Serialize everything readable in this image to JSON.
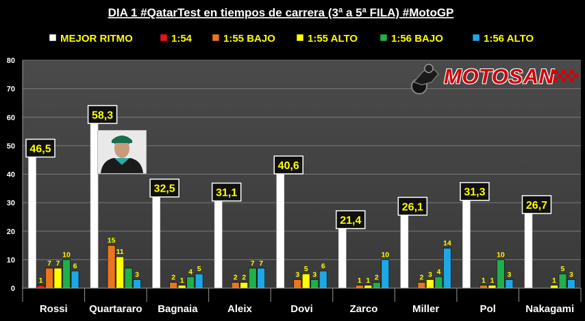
{
  "chart_data": {
    "type": "bar",
    "title": "DIA 1 #QatarTest en tiempos de carrera (3ª a 5ª FILA) #MotoGP",
    "xlabel": "",
    "ylabel": "",
    "ylim": [
      0,
      80
    ],
    "yticks": [
      0,
      10,
      20,
      30,
      40,
      50,
      60,
      70,
      80
    ],
    "legend_position": "top",
    "categories": [
      "Rossi",
      "Quartararo",
      "Bagnaia",
      "Aleix",
      "Dovi",
      "Zarco",
      "Miller",
      "Pol",
      "Nakagami"
    ],
    "series": [
      {
        "name": "MEJOR RITMO",
        "color": "#ffffff",
        "values": [
          46.5,
          58.3,
          32.5,
          31.1,
          40.6,
          21.4,
          26.1,
          31.3,
          26.7
        ],
        "labels": [
          "46,5",
          "58,3",
          "32,5",
          "31,1",
          "40,6",
          "21,4",
          "26,1",
          "31,3",
          "26,7"
        ]
      },
      {
        "name": "1:54",
        "color": "#e8131b",
        "values": [
          1,
          0,
          0,
          0,
          0,
          0,
          0,
          0,
          0
        ],
        "labels": [
          "1",
          "",
          "",
          "",
          "",
          "",
          "",
          "",
          ""
        ]
      },
      {
        "name": "1:55 BAJO",
        "color": "#e8761e",
        "values": [
          7,
          15,
          2,
          2,
          3,
          1,
          2,
          1,
          0
        ],
        "labels": [
          "7",
          "15",
          "2",
          "2",
          "3",
          "1",
          "2",
          "1",
          ""
        ]
      },
      {
        "name": "1:55 ALTO",
        "color": "#ffff00",
        "values": [
          7,
          11,
          1,
          2,
          5,
          1,
          3,
          1,
          1
        ],
        "labels": [
          "7",
          "11",
          "1",
          "2",
          "5",
          "1",
          "3",
          "1",
          "1"
        ]
      },
      {
        "name": "1:56 BAJO",
        "color": "#1fb04a",
        "values": [
          10,
          7,
          4,
          7,
          3,
          2,
          4,
          10,
          5
        ],
        "labels": [
          "10",
          "",
          "4",
          "7",
          "3",
          "2",
          "4",
          "10",
          "5"
        ]
      },
      {
        "name": "1:56 ALTO",
        "color": "#1ea7e4",
        "values": [
          6,
          3,
          5,
          7,
          6,
          10,
          14,
          3,
          3
        ],
        "labels": [
          "6",
          "3",
          "5",
          "7",
          "6",
          "10",
          "14",
          "3",
          "3"
        ]
      }
    ]
  },
  "logo": {
    "text": "MOTOSAN"
  }
}
